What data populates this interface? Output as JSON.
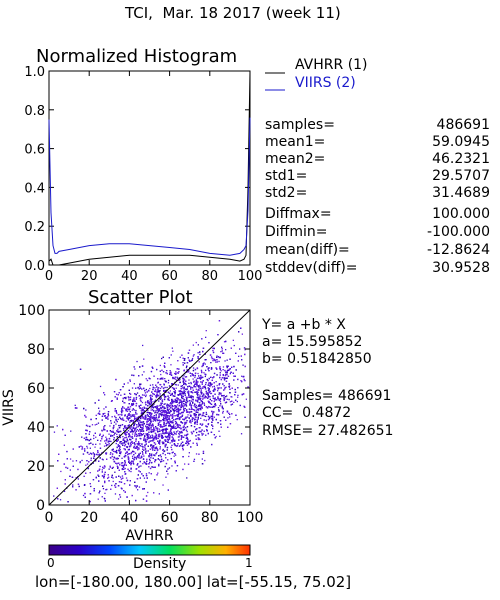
{
  "header": {
    "title": "TCI,  Mar. 18 2017 (week 11)"
  },
  "histogram": {
    "title": "Normalized Histogram",
    "legend": [
      {
        "label": "AVHRR (1)",
        "color": "#000000"
      },
      {
        "label": "VIIRS (2)",
        "color": "#1a1acc"
      }
    ]
  },
  "stats": [
    {
      "name": "samples=",
      "value": "486691"
    },
    {
      "name": "mean1=",
      "value": "59.0945"
    },
    {
      "name": "mean2=",
      "value": "46.2321"
    },
    {
      "name": "std1=",
      "value": "29.5707"
    },
    {
      "name": "std2=",
      "value": "31.4689"
    },
    {
      "name": "Diffmax=",
      "value": "100.000"
    },
    {
      "name": "Diffmin=",
      "value": "-100.000"
    },
    {
      "name": "mean(diff)=",
      "value": "-12.8624"
    },
    {
      "name": "stddev(diff)=",
      "value": "30.9528"
    }
  ],
  "scatter": {
    "title": "Scatter Plot",
    "fit_eq": "Y= a +b * X",
    "a_line": "a= 15.595852",
    "b_line": "b= 0.51842850",
    "samples_line": "Samples= 486691",
    "cc_line": "CC=  0.4872",
    "rmse_line": "RMSE= 27.482651"
  },
  "colorbar": {
    "label": "Density",
    "min": "0",
    "max": "1"
  },
  "footer": {
    "extent": "lon=[-180.00, 180.00] lat=[-55.15, 75.02]"
  },
  "chart_data": [
    {
      "type": "line",
      "title": "Normalized Histogram",
      "xlim": [
        0,
        100
      ],
      "ylim": [
        0,
        1
      ],
      "x_ticks": [
        "0",
        "20",
        "40",
        "60",
        "80",
        "100"
      ],
      "y_ticks": [
        "0.0",
        "0.2",
        "0.4",
        "0.6",
        "0.8",
        "1.0"
      ],
      "series": [
        {
          "name": "AVHRR (1)",
          "color": "#000000",
          "x": [
            0,
            1,
            2,
            3,
            5,
            10,
            20,
            30,
            40,
            50,
            60,
            70,
            80,
            90,
            95,
            97,
            98,
            99,
            100
          ],
          "y": [
            0.02,
            0.03,
            0.0,
            0.0,
            0.0,
            0.01,
            0.03,
            0.04,
            0.05,
            0.05,
            0.05,
            0.05,
            0.04,
            0.03,
            0.02,
            0.03,
            0.05,
            0.4,
            1.0
          ]
        },
        {
          "name": "VIIRS (2)",
          "color": "#1a1acc",
          "x": [
            0,
            1,
            2,
            3,
            4,
            5,
            10,
            20,
            30,
            40,
            50,
            60,
            70,
            80,
            90,
            95,
            97,
            98,
            99,
            100
          ],
          "y": [
            0.75,
            0.27,
            0.1,
            0.06,
            0.06,
            0.07,
            0.08,
            0.1,
            0.11,
            0.11,
            0.1,
            0.09,
            0.08,
            0.06,
            0.05,
            0.06,
            0.08,
            0.1,
            0.28,
            0.76
          ]
        }
      ]
    },
    {
      "type": "scatter",
      "title": "Scatter Plot",
      "xlabel": "AVHRR",
      "ylabel": "VIIRS",
      "xlim": [
        0,
        100
      ],
      "ylim": [
        0,
        100
      ],
      "x_ticks": [
        "0",
        "20",
        "40",
        "60",
        "80",
        "100"
      ],
      "y_ticks": [
        "0",
        "20",
        "40",
        "60",
        "80",
        "100"
      ],
      "fit": {
        "a": 15.595852,
        "b": 0.5184285
      },
      "samples": 486691,
      "cc": 0.4872,
      "rmse": 27.482651
    }
  ]
}
